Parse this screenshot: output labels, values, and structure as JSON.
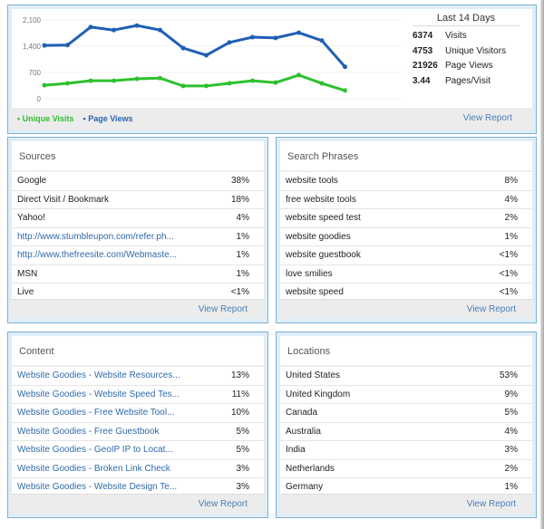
{
  "summary": {
    "title": "Last 14 Days",
    "stats": [
      {
        "value": "6374",
        "label": "Visits"
      },
      {
        "value": "4753",
        "label": "Unique Visitors"
      },
      {
        "value": "21926",
        "label": "Page Views"
      },
      {
        "value": "3.44",
        "label": "Pages/Visit"
      }
    ],
    "view_report": "View Report"
  },
  "chart_data": {
    "type": "line",
    "y_ticks": [
      "0",
      "700",
      "1,400",
      "2,100"
    ],
    "ylim": [
      0,
      2100
    ],
    "grid": true,
    "legend_placement": "bottom-left",
    "series": [
      {
        "name": "Unique Visits",
        "color": "#2ec02e",
        "values": [
          360,
          410,
          480,
          480,
          530,
          550,
          340,
          340,
          410,
          480,
          430,
          630,
          410,
          220
        ]
      },
      {
        "name": "Page Views",
        "color": "#1f5fb5",
        "values": [
          1420,
          1430,
          1910,
          1830,
          1950,
          1830,
          1350,
          1160,
          1500,
          1640,
          1620,
          1760,
          1550,
          850
        ]
      }
    ]
  },
  "sources": {
    "title": "Sources",
    "rows": [
      [
        "Google",
        "38%",
        false
      ],
      [
        "Direct Visit / Bookmark",
        "18%",
        false
      ],
      [
        "Yahoo!",
        "4%",
        false
      ],
      [
        "http://www.stumbleupon.com/refer.ph...",
        "1%",
        true
      ],
      [
        "http://www.thefreesite.com/Webmaste...",
        "1%",
        true
      ],
      [
        "MSN",
        "1%",
        false
      ],
      [
        "Live",
        "<1%",
        false
      ]
    ],
    "view_report": "View Report"
  },
  "search": {
    "title": "Search Phrases",
    "rows": [
      [
        "website tools",
        "8%",
        false
      ],
      [
        "free website tools",
        "4%",
        false
      ],
      [
        "website speed test",
        "2%",
        false
      ],
      [
        "website goodies",
        "1%",
        false
      ],
      [
        "website guestbook",
        "<1%",
        false
      ],
      [
        "love smilies",
        "<1%",
        false
      ],
      [
        "website speed",
        "<1%",
        false
      ]
    ],
    "view_report": "View Report"
  },
  "content": {
    "title": "Content",
    "rows": [
      [
        "Website Goodies - Website Resources...",
        "13%",
        true
      ],
      [
        "Website Goodies - Website Speed Tes...",
        "11%",
        true
      ],
      [
        "Website Goodies - Free Website Tool...",
        "10%",
        true
      ],
      [
        "Website Goodies - Free Guestbook",
        "5%",
        true
      ],
      [
        "Website Goodies - GeoIP IP to Locat...",
        "5%",
        true
      ],
      [
        "Website Goodies - Broken Link Check",
        "3%",
        true
      ],
      [
        "Website Goodies - Website Design Te...",
        "3%",
        true
      ]
    ],
    "view_report": "View Report"
  },
  "locations": {
    "title": "Locations",
    "rows": [
      [
        "United States",
        "53%",
        false
      ],
      [
        "United Kingdom",
        "9%",
        false
      ],
      [
        "Canada",
        "5%",
        false
      ],
      [
        "Australia",
        "4%",
        false
      ],
      [
        "India",
        "3%",
        false
      ],
      [
        "Netherlands",
        "2%",
        false
      ],
      [
        "Germany",
        "1%",
        false
      ]
    ],
    "view_report": "View Report"
  }
}
